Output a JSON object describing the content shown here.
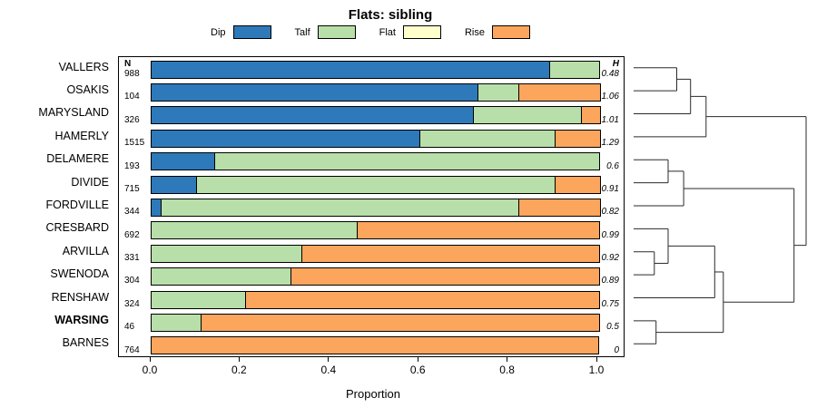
{
  "title": "Flats: sibling",
  "legend": [
    {
      "label": "Dip",
      "color": "#2E79B9"
    },
    {
      "label": "Talf",
      "color": "#B8DFA9"
    },
    {
      "label": "Flat",
      "color": "#FFFFCC"
    },
    {
      "label": "Rise",
      "color": "#FBA55D"
    }
  ],
  "chart_data": {
    "type": "bar",
    "orientation": "horizontal",
    "stacked": true,
    "title": "Flats: sibling",
    "xlabel": "Proportion",
    "xlim": [
      0,
      1
    ],
    "xticks": [
      {
        "label": "0.0",
        "value": 0.0
      },
      {
        "label": "0.2",
        "value": 0.2
      },
      {
        "label": "0.4",
        "value": 0.4
      },
      {
        "label": "0.6",
        "value": 0.6
      },
      {
        "label": "0.8",
        "value": 0.8
      },
      {
        "label": "1.0",
        "value": 1.0
      }
    ],
    "segments": [
      "Dip",
      "Talf",
      "Flat",
      "Rise"
    ],
    "n_header": "N",
    "h_header": "H",
    "rows": [
      {
        "label": "VALLERS",
        "n": "988",
        "h": "0.48",
        "bold": false,
        "values": [
          0.89,
          0.11,
          0,
          0
        ]
      },
      {
        "label": "OSAKIS",
        "n": "104",
        "h": "1.06",
        "bold": false,
        "values": [
          0.73,
          0.09,
          0,
          0.18
        ]
      },
      {
        "label": "MARYSLAND",
        "n": "326",
        "h": "1.01",
        "bold": false,
        "values": [
          0.72,
          0.24,
          0,
          0.04
        ]
      },
      {
        "label": "HAMERLY",
        "n": "1515",
        "h": "1.29",
        "bold": false,
        "values": [
          0.6,
          0.3,
          0,
          0.1
        ]
      },
      {
        "label": "DELAMERE",
        "n": "193",
        "h": "0.6",
        "bold": false,
        "values": [
          0.14,
          0.86,
          0,
          0
        ]
      },
      {
        "label": "DIVIDE",
        "n": "715",
        "h": "0.91",
        "bold": false,
        "values": [
          0.1,
          0.8,
          0,
          0.1
        ]
      },
      {
        "label": "FORDVILLE",
        "n": "344",
        "h": "0.82",
        "bold": false,
        "values": [
          0.02,
          0.8,
          0,
          0.18
        ]
      },
      {
        "label": "CRESBARD",
        "n": "692",
        "h": "0.99",
        "bold": false,
        "values": [
          0,
          0.46,
          0,
          0.54
        ]
      },
      {
        "label": "ARVILLA",
        "n": "331",
        "h": "0.92",
        "bold": false,
        "values": [
          0,
          0.335,
          0,
          0.665
        ]
      },
      {
        "label": "SWENODA",
        "n": "304",
        "h": "0.89",
        "bold": false,
        "values": [
          0,
          0.31,
          0,
          0.69
        ]
      },
      {
        "label": "RENSHAW",
        "n": "324",
        "h": "0.75",
        "bold": false,
        "values": [
          0,
          0.21,
          0,
          0.79
        ]
      },
      {
        "label": "WARSING",
        "n": "46",
        "h": "0.5",
        "bold": true,
        "values": [
          0,
          0.11,
          0,
          0.89
        ]
      },
      {
        "label": "BARNES",
        "n": "764",
        "h": "0",
        "bold": false,
        "values": [
          0,
          0,
          0,
          1.0
        ]
      }
    ],
    "dendrogram": {
      "merges": [
        {
          "a": "L0",
          "b": "L1",
          "h": 0.25
        },
        {
          "a": "M0",
          "b": "L2",
          "h": 0.33
        },
        {
          "a": "M1",
          "b": "L3",
          "h": 0.42
        },
        {
          "a": "L4",
          "b": "L5",
          "h": 0.2
        },
        {
          "a": "M3",
          "b": "L6",
          "h": 0.29
        },
        {
          "a": "L8",
          "b": "L9",
          "h": 0.12
        },
        {
          "a": "L7",
          "b": "M5",
          "h": 0.2
        },
        {
          "a": "M6",
          "b": "L10",
          "h": 0.47
        },
        {
          "a": "L11",
          "b": "L12",
          "h": 0.13
        },
        {
          "a": "M7",
          "b": "M8",
          "h": 0.52
        },
        {
          "a": "M4",
          "b": "M9",
          "h": 0.93
        },
        {
          "a": "M2",
          "b": "M10",
          "h": 1.0
        }
      ]
    }
  }
}
